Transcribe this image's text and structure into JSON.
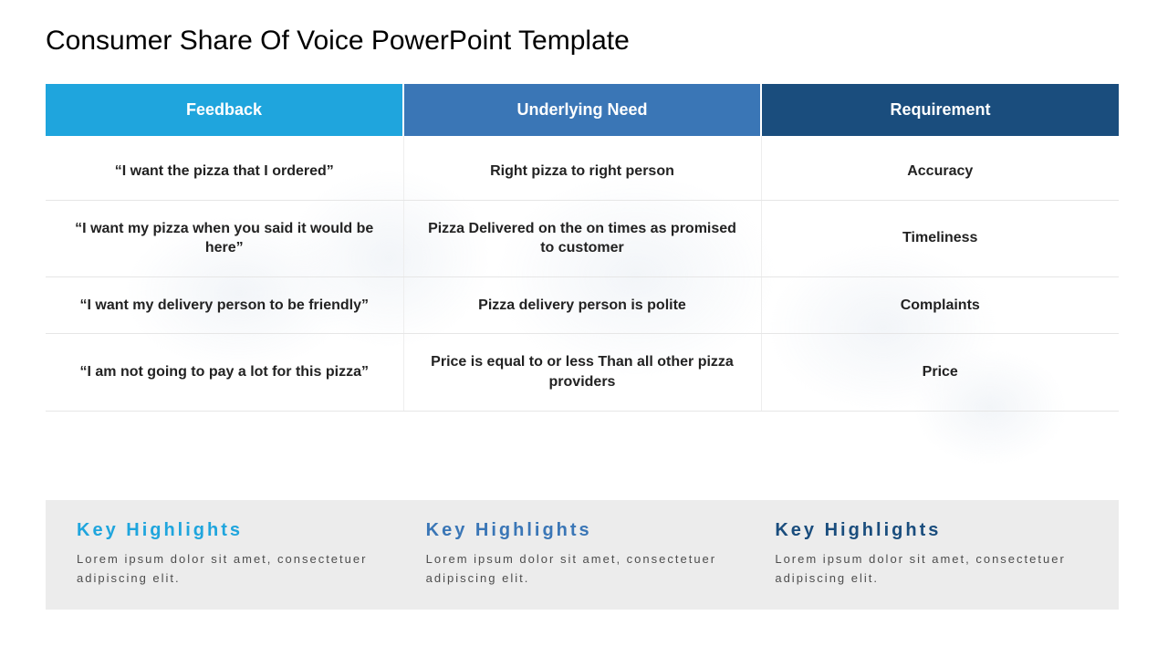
{
  "title": "Consumer Share Of Voice PowerPoint Template",
  "table": {
    "columns": [
      "Feedback",
      "Underlying Need",
      "Requirement"
    ],
    "header_colors": [
      "#1fa5dd",
      "#3a76b6",
      "#1a4d7d"
    ],
    "header_fontsize": 18,
    "cell_fontsize": 16,
    "cell_fontweight": 700,
    "border_color": "#e6e6e6",
    "rows": [
      [
        "“I want the pizza that I ordered”",
        "Right pizza to right  person",
        "Accuracy"
      ],
      [
        "“I want my pizza when you said it would be here”",
        "Pizza Delivered on the on times as promised to customer",
        "Timeliness"
      ],
      [
        "“I want my delivery person to be friendly”",
        "Pizza delivery person is polite",
        "Complaints"
      ],
      [
        "“I am not going to pay a lot for this pizza”",
        "Price is equal to or less Than all other pizza providers",
        "Price"
      ]
    ]
  },
  "highlights": {
    "background_color": "#ececec",
    "title_fontsize": 20,
    "title_letter_spacing": 3,
    "body_fontsize": 13,
    "body_color": "#4d4d4d",
    "items": [
      {
        "title": "Key Highlights",
        "body": "Lorem ipsum dolor sit amet, consectetuer adipiscing elit.",
        "title_color": "#1fa5dd"
      },
      {
        "title": "Key Highlights",
        "body": "Lorem ipsum dolor sit amet, consectetuer adipiscing elit.",
        "title_color": "#3a76b6"
      },
      {
        "title": "Key Highlights",
        "body": "Lorem ipsum dolor sit amet, consectetuer adipiscing elit.",
        "title_color": "#1a4d7d"
      }
    ]
  },
  "background_color": "#ffffff",
  "title_fontsize": 30,
  "title_color": "#000000"
}
